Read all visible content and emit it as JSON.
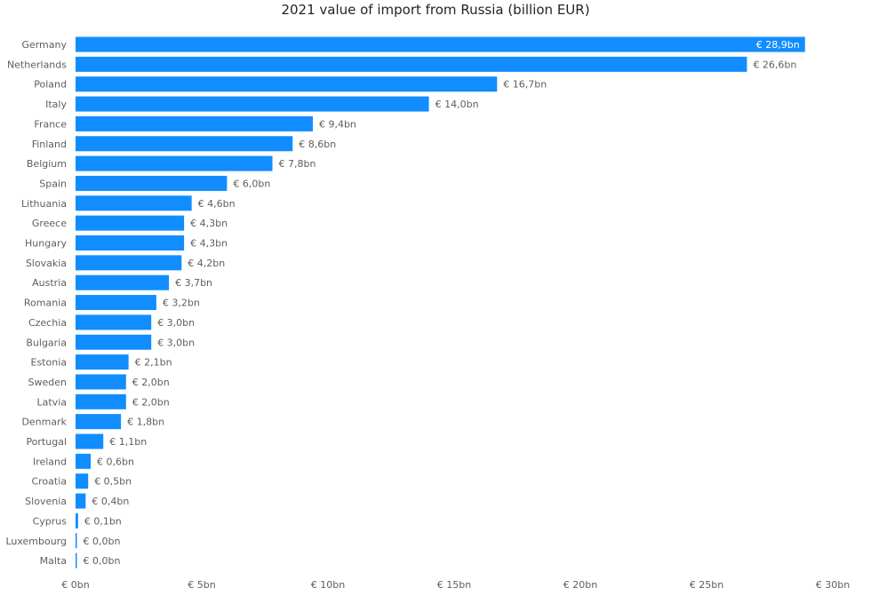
{
  "chart_data": {
    "type": "bar",
    "orientation": "horizontal",
    "title": "2021 value of import from Russia (billion EUR)",
    "xlabel": "",
    "ylabel": "",
    "xlim": [
      0,
      30
    ],
    "grid": false,
    "legend": "none",
    "bar_color": "#118DFF",
    "categories": [
      "Germany",
      "Netherlands",
      "Poland",
      "Italy",
      "France",
      "Finland",
      "Belgium",
      "Spain",
      "Lithuania",
      "Greece",
      "Hungary",
      "Slovakia",
      "Austria",
      "Romania",
      "Czechia",
      "Bulgaria",
      "Estonia",
      "Sweden",
      "Latvia",
      "Denmark",
      "Portugal",
      "Ireland",
      "Croatia",
      "Slovenia",
      "Cyprus",
      "Luxembourg",
      "Malta"
    ],
    "values": [
      28.9,
      26.6,
      16.7,
      14.0,
      9.4,
      8.6,
      7.8,
      6.0,
      4.6,
      4.3,
      4.3,
      4.2,
      3.7,
      3.2,
      3.0,
      3.0,
      2.1,
      2.0,
      2.0,
      1.8,
      1.1,
      0.6,
      0.5,
      0.4,
      0.1,
      0.02,
      0.01
    ],
    "data_labels": [
      "€ 28,9bn",
      "€ 26,6bn",
      "€ 16,7bn",
      "€ 14,0bn",
      "€ 9,4bn",
      "€ 8,6bn",
      "€ 7,8bn",
      "€ 6,0bn",
      "€ 4,6bn",
      "€ 4,3bn",
      "€ 4,3bn",
      "€ 4,2bn",
      "€ 3,7bn",
      "€ 3,2bn",
      "€ 3,0bn",
      "€ 3,0bn",
      "€ 2,1bn",
      "€ 2,0bn",
      "€ 2,0bn",
      "€ 1,8bn",
      "€ 1,1bn",
      "€ 0,6bn",
      "€ 0,5bn",
      "€ 0,4bn",
      "€ 0,1bn",
      "€ 0,0bn",
      "€ 0,0bn"
    ],
    "x_ticks": [
      0,
      5,
      10,
      15,
      20,
      25,
      30
    ],
    "x_tick_labels": [
      "€ 0bn",
      "€ 5bn",
      "€ 10bn",
      "€ 15bn",
      "€ 20bn",
      "€ 25bn",
      "€ 30bn"
    ]
  }
}
